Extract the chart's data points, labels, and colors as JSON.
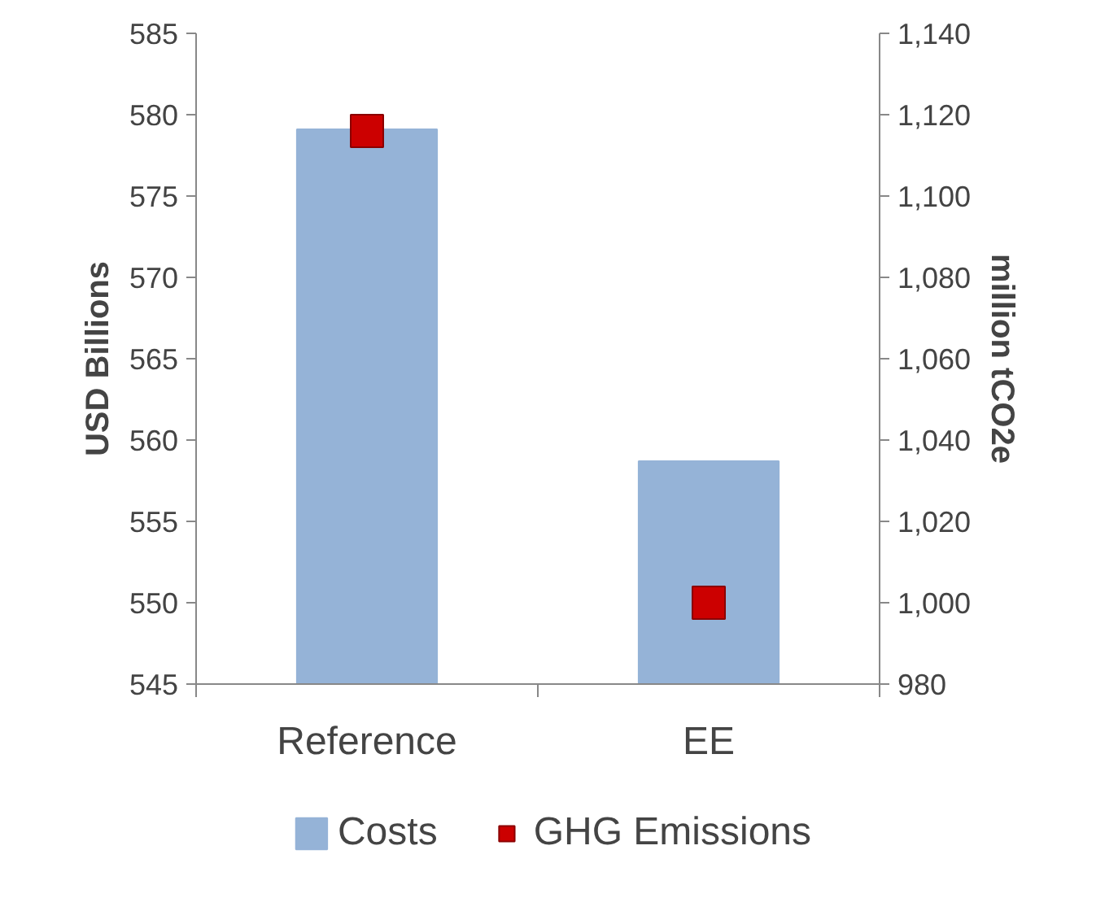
{
  "chart_data": {
    "type": "bar",
    "categories": [
      "Reference",
      "EE"
    ],
    "ylabel": "USD Billions",
    "y2label": "million tCO2e",
    "series": [
      {
        "name": "Costs",
        "type": "bar",
        "color": "#95b3d7",
        "values": [
          579.1,
          558.7
        ]
      },
      {
        "name": "GHG Emissions",
        "type": "scatter",
        "axis": "y2",
        "marker": "square",
        "color": "#cc0000",
        "values": [
          1116,
          1000
        ]
      }
    ],
    "ylim": [
      545,
      585
    ],
    "yticks": [
      545,
      550,
      555,
      560,
      565,
      570,
      575,
      580,
      585
    ],
    "y2lim": [
      980,
      1140
    ],
    "y2ticks": [
      {
        "value": 980,
        "label": "980"
      },
      {
        "value": 1000,
        "label": "1,000"
      },
      {
        "value": 1020,
        "label": "1,020"
      },
      {
        "value": 1040,
        "label": "1,040"
      },
      {
        "value": 1060,
        "label": "1,060"
      },
      {
        "value": 1080,
        "label": "1,080"
      },
      {
        "value": 1100,
        "label": "1,100"
      },
      {
        "value": 1120,
        "label": "1,120"
      },
      {
        "value": 1140,
        "label": "1,140"
      }
    ],
    "grid": false,
    "legend": "bottom"
  }
}
